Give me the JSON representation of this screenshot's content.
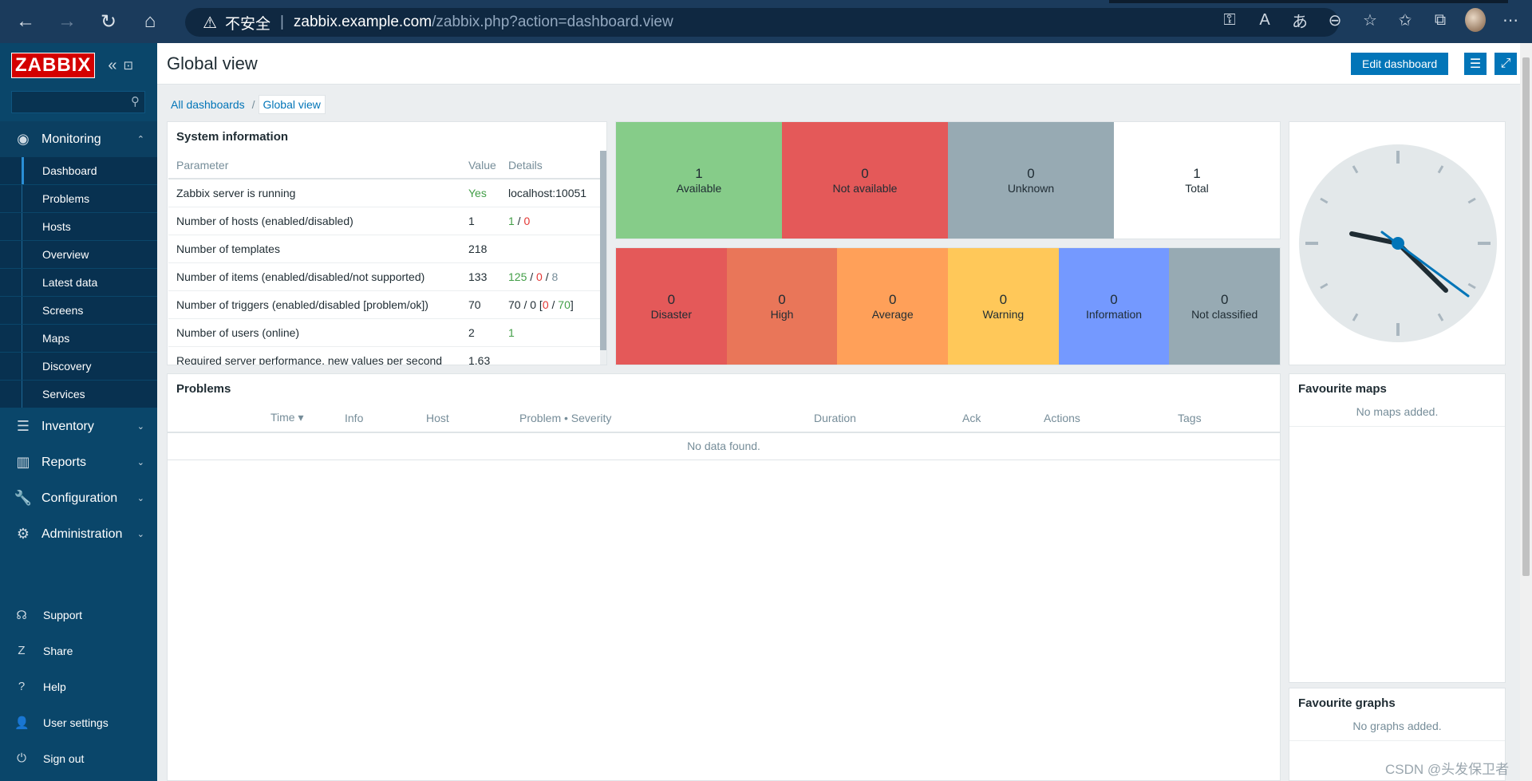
{
  "browser": {
    "warning": "不安全",
    "url_host": "zabbix.example.com",
    "url_path": "/zabbix.php?action=dashboard.view"
  },
  "logo": "ZABBIX",
  "sidebar": {
    "monitoring": "Monitoring",
    "monitoring_items": [
      "Dashboard",
      "Problems",
      "Hosts",
      "Overview",
      "Latest data",
      "Screens",
      "Maps",
      "Discovery",
      "Services"
    ],
    "inventory": "Inventory",
    "reports": "Reports",
    "configuration": "Configuration",
    "administration": "Administration",
    "bottom": [
      "Support",
      "Share",
      "Help",
      "User settings",
      "Sign out"
    ]
  },
  "header": {
    "title": "Global view",
    "edit_label": "Edit dashboard"
  },
  "breadcrumb": {
    "all": "All dashboards",
    "current": "Global view"
  },
  "sysinfo": {
    "title": "System information",
    "columns": [
      "Parameter",
      "Value",
      "Details"
    ],
    "rows": [
      {
        "param": "Zabbix server is running",
        "value": "Yes",
        "details": "localhost:10051"
      },
      {
        "param": "Number of hosts (enabled/disabled)",
        "value": "1",
        "d1": "1",
        "d2": "0"
      },
      {
        "param": "Number of templates",
        "value": "218"
      },
      {
        "param": "Number of items (enabled/disabled/not supported)",
        "value": "133",
        "d1": "125",
        "d2": "0",
        "d3": "8"
      },
      {
        "param": "Number of triggers (enabled/disabled [problem/ok])",
        "value": "70",
        "d_pre": "70 / 0 [",
        "d1": "0",
        "d2": "70",
        "d_post": "]"
      },
      {
        "param": "Number of users (online)",
        "value": "2",
        "d1": "1"
      },
      {
        "param": "Required server performance, new values per second",
        "value": "1.63"
      }
    ]
  },
  "host_availability": [
    {
      "count": "1",
      "label": "Available",
      "color": "#86cc89"
    },
    {
      "count": "0",
      "label": "Not available",
      "color": "#e45959"
    },
    {
      "count": "0",
      "label": "Unknown",
      "color": "#97aab3"
    },
    {
      "count": "1",
      "label": "Total",
      "color": "#ffffff"
    }
  ],
  "problems_by_severity": [
    {
      "count": "0",
      "label": "Disaster",
      "color": "#e45959"
    },
    {
      "count": "0",
      "label": "High",
      "color": "#e97659"
    },
    {
      "count": "0",
      "label": "Average",
      "color": "#ffa059"
    },
    {
      "count": "0",
      "label": "Warning",
      "color": "#ffc859"
    },
    {
      "count": "0",
      "label": "Information",
      "color": "#7499ff"
    },
    {
      "count": "0",
      "label": "Not classified",
      "color": "#97aab3"
    }
  ],
  "problems": {
    "title": "Problems",
    "columns": [
      "Time ▾",
      "Info",
      "Host",
      "Problem • Severity",
      "Duration",
      "Ack",
      "Actions",
      "Tags"
    ],
    "empty": "No data found."
  },
  "favourite_maps": {
    "title": "Favourite maps",
    "empty": "No maps added."
  },
  "favourite_graphs": {
    "title": "Favourite graphs",
    "empty": "No graphs added."
  },
  "watermark": "CSDN @头发保卫者"
}
